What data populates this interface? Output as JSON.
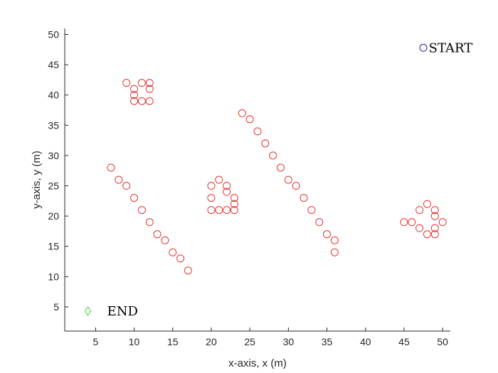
{
  "chart_data": {
    "type": "scatter",
    "xlabel": "x-axis, x (m)",
    "ylabel": "y-axis, y (m)",
    "xlim": [
      1,
      51
    ],
    "ylim": [
      1,
      51
    ],
    "xticks": [
      5,
      10,
      15,
      20,
      25,
      30,
      35,
      40,
      45,
      50
    ],
    "yticks": [
      5,
      10,
      15,
      20,
      25,
      30,
      35,
      40,
      45,
      50
    ],
    "grid": false,
    "series": [
      {
        "marker": "circle",
        "color": "#e8312e",
        "points": [
          [
            9,
            42
          ],
          [
            11,
            42
          ],
          [
            12,
            42
          ],
          [
            10,
            41
          ],
          [
            12,
            41
          ],
          [
            10,
            40
          ],
          [
            10,
            39
          ],
          [
            11,
            39
          ],
          [
            12,
            39
          ],
          [
            7,
            28
          ],
          [
            8,
            26
          ],
          [
            9,
            25
          ],
          [
            10,
            23
          ],
          [
            11,
            21
          ],
          [
            12,
            19
          ],
          [
            13,
            17
          ],
          [
            14,
            16
          ],
          [
            15,
            14
          ],
          [
            16,
            13
          ],
          [
            17,
            11
          ],
          [
            20,
            25
          ],
          [
            21,
            26
          ],
          [
            22,
            25
          ],
          [
            22,
            24
          ],
          [
            20,
            23
          ],
          [
            23,
            23
          ],
          [
            23,
            22
          ],
          [
            20,
            21
          ],
          [
            21,
            21
          ],
          [
            22,
            21
          ],
          [
            23,
            21
          ],
          [
            24,
            37
          ],
          [
            25,
            36
          ],
          [
            26,
            34
          ],
          [
            27,
            32
          ],
          [
            28,
            30
          ],
          [
            29,
            28
          ],
          [
            30,
            26
          ],
          [
            31,
            25
          ],
          [
            32,
            23
          ],
          [
            33,
            21
          ],
          [
            34,
            19
          ],
          [
            35,
            17
          ],
          [
            36,
            16
          ],
          [
            36,
            14
          ],
          [
            45,
            19
          ],
          [
            46,
            19
          ],
          [
            47,
            21
          ],
          [
            48,
            22
          ],
          [
            49,
            21
          ],
          [
            49,
            20
          ],
          [
            47,
            18
          ],
          [
            49,
            18
          ],
          [
            48,
            17
          ],
          [
            49,
            17
          ],
          [
            50,
            19
          ]
        ]
      },
      {
        "marker": "circle",
        "color": "#1e22a8",
        "points": [
          [
            47.5,
            47.8
          ]
        ]
      },
      {
        "marker": "diamond",
        "color": "#3ad33a",
        "points": [
          [
            4,
            4.3
          ]
        ]
      }
    ],
    "annotations": [
      {
        "text": "START",
        "x": 48.2,
        "y": 47.8
      },
      {
        "text": "END",
        "x": 6.5,
        "y": 4.3
      }
    ]
  }
}
